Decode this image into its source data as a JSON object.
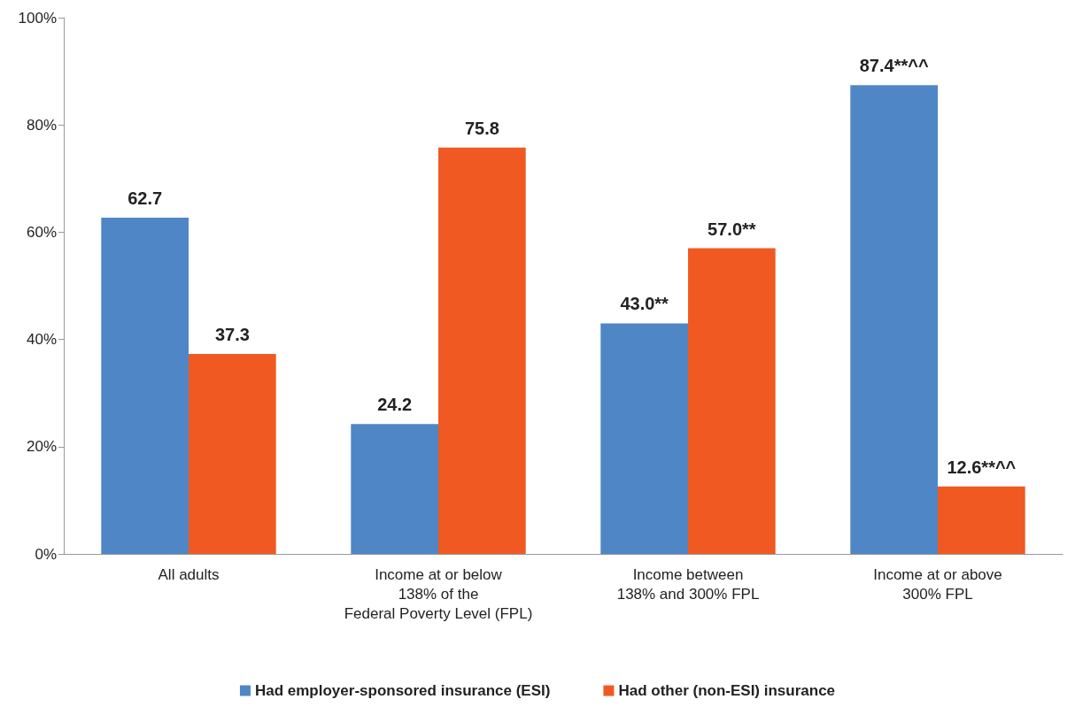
{
  "chart_data": {
    "type": "bar",
    "categories": [
      "All adults",
      "Income at or below\n138% of the\nFederal Poverty Level (FPL)",
      "Income between\n138% and 300% FPL",
      "Income at or above\n300% FPL"
    ],
    "series": [
      {
        "name": "Had employer-sponsored insurance (ESI)",
        "color": "#4f86c6",
        "values": [
          62.7,
          24.2,
          43.0,
          87.4
        ],
        "value_labels": [
          "62.7",
          "24.2",
          "43.0**",
          "87.4**^^"
        ]
      },
      {
        "name": "Had other (non-ESI) insurance",
        "color": "#f05a22",
        "values": [
          37.3,
          75.8,
          57.0,
          12.6
        ],
        "value_labels": [
          "37.3",
          "75.8",
          "57.0**",
          "12.6**^^"
        ]
      }
    ],
    "ylim": [
      0,
      100
    ],
    "yticks": [
      {
        "value": 0,
        "label": "0%"
      },
      {
        "value": 20,
        "label": "20%"
      },
      {
        "value": 40,
        "label": "40%"
      },
      {
        "value": 60,
        "label": "60%"
      },
      {
        "value": 80,
        "label": "80%"
      },
      {
        "value": 100,
        "label": "100%"
      }
    ],
    "grid": false,
    "legend": "bottom"
  }
}
